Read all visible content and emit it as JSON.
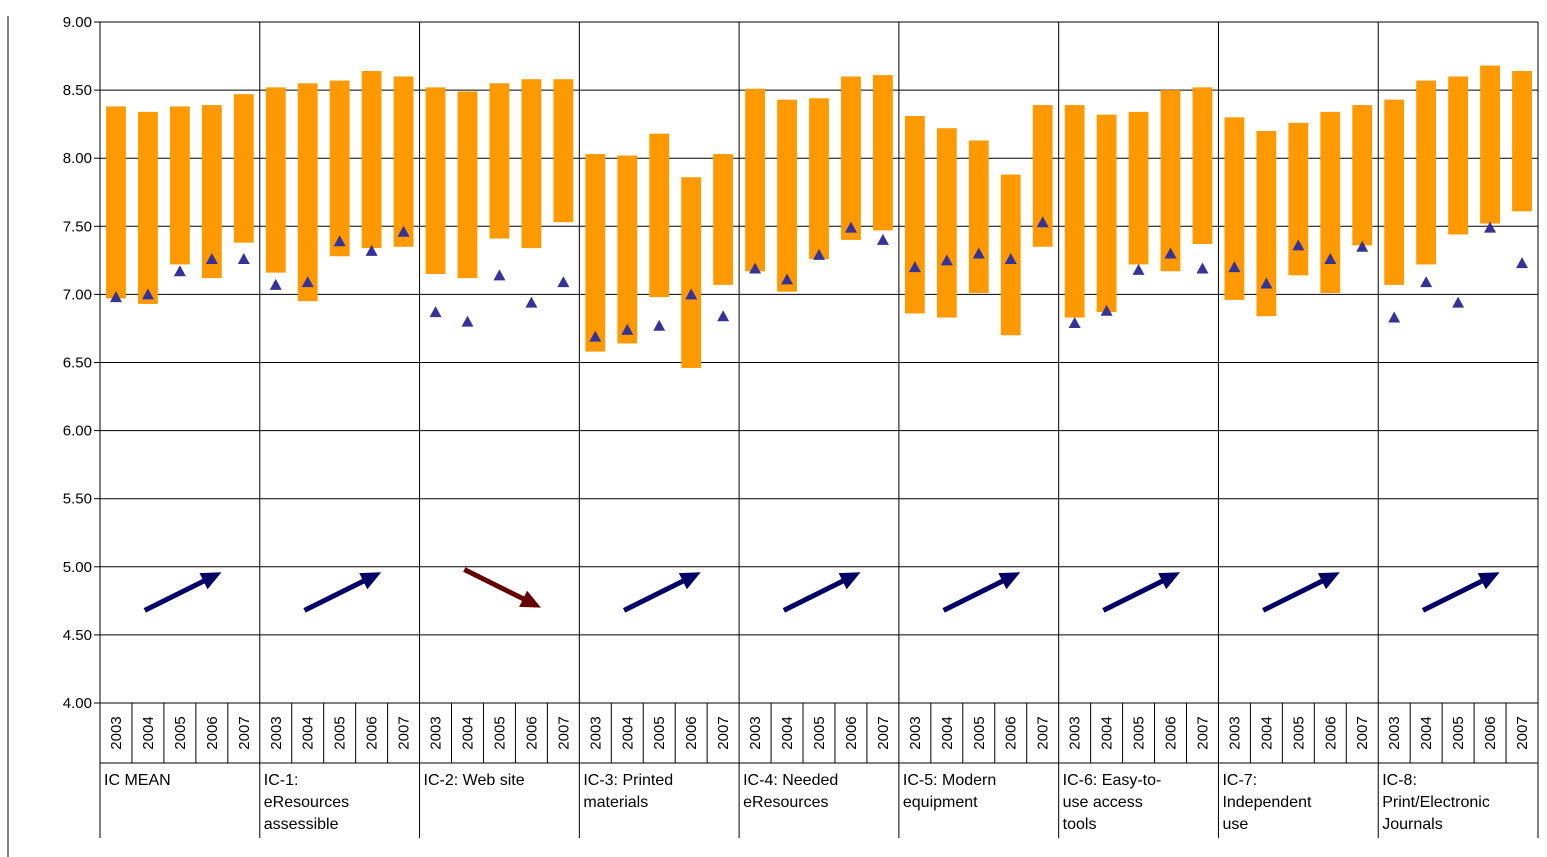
{
  "chart_data": {
    "type": "bar",
    "description_note": "",
    "ylim": [
      4.0,
      9.0
    ],
    "ytick_step": 0.5,
    "yticks": [
      "4.00",
      "4.50",
      "5.00",
      "5.50",
      "6.00",
      "6.50",
      "7.00",
      "7.50",
      "8.00",
      "8.50",
      "9.00"
    ],
    "years": [
      "2003",
      "2004",
      "2005",
      "2006",
      "2007"
    ],
    "grid": true,
    "colors": {
      "bar": "#FF9900",
      "marker": "#333399",
      "arrow_up": "#000066",
      "arrow_down": "#660000",
      "grid": "#000000"
    },
    "groups": [
      {
        "label_lines": [
          "IC MEAN"
        ],
        "low": [
          6.97,
          6.93,
          7.22,
          7.12,
          7.38
        ],
        "high": [
          8.38,
          8.34,
          8.38,
          8.39,
          8.47
        ],
        "marker": [
          6.98,
          7.0,
          7.17,
          7.26,
          7.26
        ],
        "trend": "up"
      },
      {
        "label_lines": [
          "IC-1:",
          "eResources",
          "assessible"
        ],
        "low": [
          7.16,
          6.95,
          7.28,
          7.34,
          7.35
        ],
        "high": [
          8.52,
          8.55,
          8.57,
          8.64,
          8.6
        ],
        "marker": [
          7.07,
          7.09,
          7.39,
          7.32,
          7.46
        ],
        "trend": "up"
      },
      {
        "label_lines": [
          "IC-2: Web site"
        ],
        "low": [
          7.15,
          7.12,
          7.41,
          7.34,
          7.53
        ],
        "high": [
          8.52,
          8.49,
          8.55,
          8.58,
          8.58
        ],
        "marker": [
          6.87,
          6.8,
          7.14,
          6.94,
          7.09
        ],
        "trend": "down"
      },
      {
        "label_lines": [
          "IC-3: Printed",
          "materials"
        ],
        "low": [
          6.58,
          6.64,
          6.98,
          6.46,
          7.07
        ],
        "high": [
          8.03,
          8.02,
          8.18,
          7.86,
          8.03
        ],
        "marker": [
          6.69,
          6.74,
          6.77,
          7.0,
          6.84
        ],
        "trend": "up"
      },
      {
        "label_lines": [
          "IC-4: Needed",
          "eResources"
        ],
        "low": [
          7.17,
          7.02,
          7.26,
          7.4,
          7.47
        ],
        "high": [
          8.51,
          8.43,
          8.44,
          8.6,
          8.61
        ],
        "marker": [
          7.19,
          7.11,
          7.29,
          7.49,
          7.4
        ],
        "trend": "up"
      },
      {
        "label_lines": [
          "IC-5: Modern",
          "equipment"
        ],
        "low": [
          6.86,
          6.83,
          7.01,
          6.7,
          7.35
        ],
        "high": [
          8.31,
          8.22,
          8.13,
          7.88,
          8.39
        ],
        "marker": [
          7.2,
          7.25,
          7.3,
          7.26,
          7.53
        ],
        "trend": "up"
      },
      {
        "label_lines": [
          "IC-6: Easy-to-",
          "use access",
          "tools"
        ],
        "low": [
          6.83,
          6.87,
          7.22,
          7.17,
          7.37
        ],
        "high": [
          8.39,
          8.32,
          8.34,
          8.5,
          8.52
        ],
        "marker": [
          6.79,
          6.88,
          7.18,
          7.3,
          7.19
        ],
        "trend": "up"
      },
      {
        "label_lines": [
          "IC-7:",
          "Independent",
          "use"
        ],
        "low": [
          6.96,
          6.84,
          7.14,
          7.01,
          7.36
        ],
        "high": [
          8.3,
          8.2,
          8.26,
          8.34,
          8.39
        ],
        "marker": [
          7.2,
          7.08,
          7.36,
          7.26,
          7.35
        ],
        "trend": "up"
      },
      {
        "label_lines": [
          "IC-8:",
          "Print/Electronic",
          "Journals"
        ],
        "low": [
          7.07,
          7.22,
          7.44,
          7.52,
          7.61
        ],
        "high": [
          8.43,
          8.57,
          8.6,
          8.68,
          8.64
        ],
        "marker": [
          6.83,
          7.09,
          6.94,
          7.49,
          7.23
        ],
        "trend": "up"
      }
    ]
  }
}
